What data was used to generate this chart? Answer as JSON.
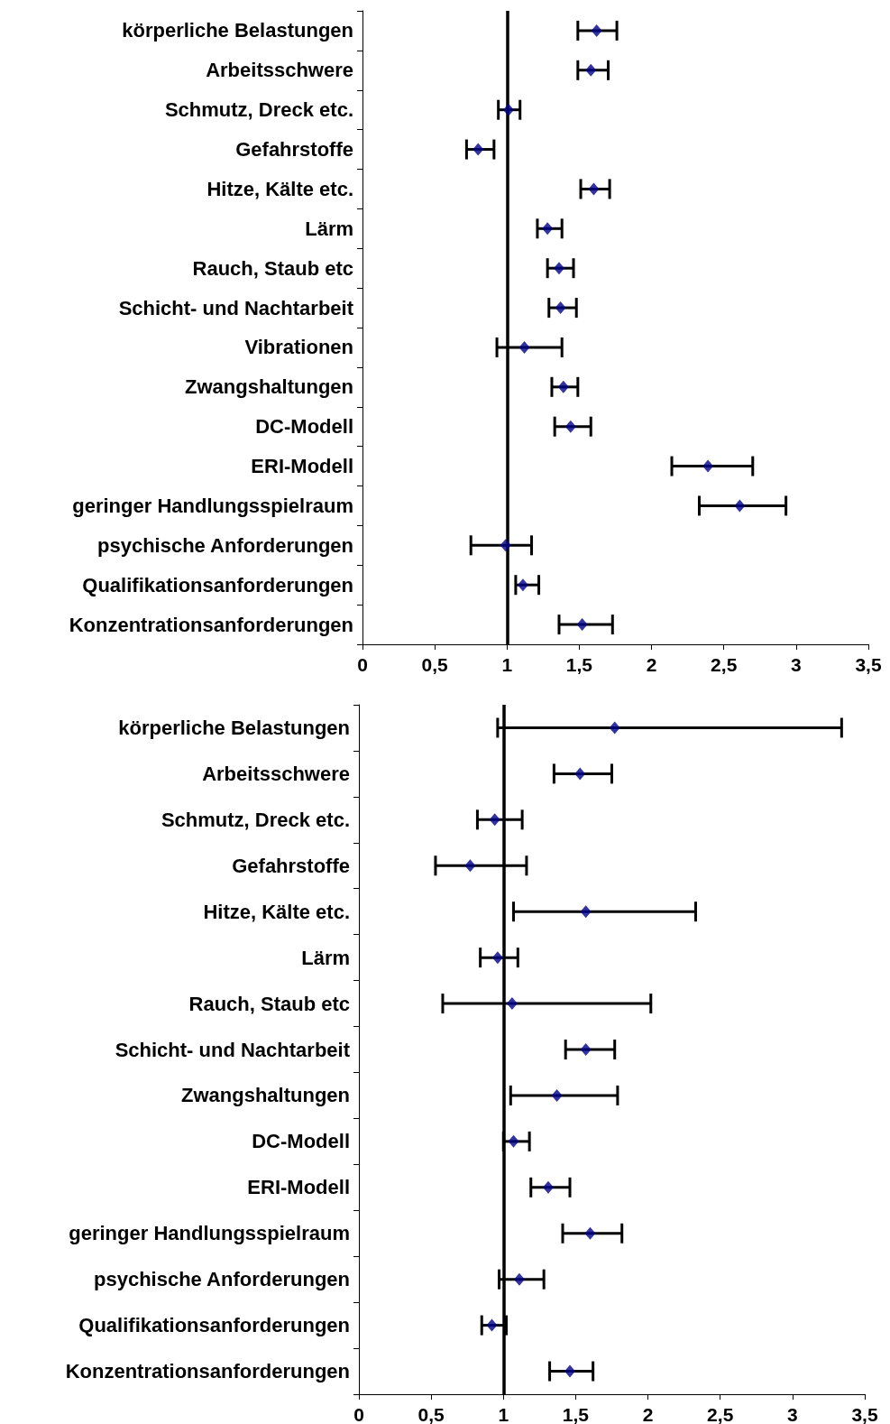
{
  "chart_data": [
    {
      "type": "scatter",
      "orientation": "horizontal",
      "marker": "diamond",
      "color": "#00008b",
      "grid": false,
      "legend": false,
      "categories": [
        "körperliche Belastungen",
        "Arbeitsschwere",
        "Schmutz, Dreck etc.",
        "Gefahrstoffe",
        "Hitze, Kälte etc.",
        "Lärm",
        "Rauch, Staub etc",
        "Schicht- und Nachtarbeit",
        "Vibrationen",
        "Zwangshaltungen",
        "DC-Modell",
        "ERI-Modell",
        "geringer Handlungsspielraum",
        "psychische Anforderungen",
        "Qualifikationsanforderungen",
        "Konzentrationsanforderungen"
      ],
      "values": [
        1.62,
        1.58,
        1.01,
        0.8,
        1.6,
        1.28,
        1.36,
        1.37,
        1.12,
        1.39,
        1.44,
        2.39,
        2.61,
        0.99,
        1.11,
        1.52
      ],
      "errors": [
        [
          1.49,
          1.76
        ],
        [
          1.49,
          1.7
        ],
        [
          0.94,
          1.09
        ],
        [
          0.72,
          0.91
        ],
        [
          1.51,
          1.71
        ],
        [
          1.21,
          1.38
        ],
        [
          1.28,
          1.46
        ],
        [
          1.29,
          1.48
        ],
        [
          0.93,
          1.38
        ],
        [
          1.31,
          1.49
        ],
        [
          1.33,
          1.58
        ],
        [
          2.14,
          2.7
        ],
        [
          2.33,
          2.93
        ],
        [
          0.75,
          1.17
        ],
        [
          1.06,
          1.22
        ],
        [
          1.36,
          1.73
        ]
      ],
      "xlim": [
        0,
        3.5
      ],
      "xticks": [
        0,
        {
          "value": 0.5,
          "label": "0,5"
        },
        1,
        {
          "value": 1.5,
          "label": "1,5"
        },
        2,
        {
          "value": 2.5,
          "label": "2,5"
        },
        3,
        {
          "value": 3.5,
          "label": "3,5"
        }
      ],
      "ref_lines": [
        {
          "axis": "x",
          "value": 1,
          "color": "#000000"
        }
      ]
    },
    {
      "type": "scatter",
      "orientation": "horizontal",
      "marker": "diamond",
      "color": "#00008b",
      "grid": false,
      "legend": false,
      "categories": [
        "körperliche Belastungen",
        "Arbeitsschwere",
        "Schmutz, Dreck etc.",
        "Gefahrstoffe",
        "Hitze, Kälte etc.",
        "Lärm",
        "Rauch, Staub etc",
        "Schicht- und Nachtarbeit",
        "Zwangshaltungen",
        "DC-Modell",
        "ERI-Modell",
        "geringer Handlungsspielraum",
        "psychische Anforderungen",
        "Qualifikationsanforderungen",
        "Konzentrationsanforderungen"
      ],
      "values": [
        1.77,
        1.53,
        0.94,
        0.77,
        1.57,
        0.96,
        1.06,
        1.57,
        1.37,
        1.07,
        1.31,
        1.6,
        1.11,
        0.92,
        1.46
      ],
      "errors": [
        [
          0.96,
          3.34
        ],
        [
          1.35,
          1.75
        ],
        [
          0.82,
          1.13
        ],
        [
          0.53,
          1.16
        ],
        [
          1.07,
          2.33
        ],
        [
          0.84,
          1.1
        ],
        [
          0.58,
          2.02
        ],
        [
          1.43,
          1.77
        ],
        [
          1.05,
          1.79
        ],
        [
          1.0,
          1.18
        ],
        [
          1.19,
          1.46
        ],
        [
          1.41,
          1.82
        ],
        [
          0.97,
          1.28
        ],
        [
          0.85,
          1.02
        ],
        [
          1.32,
          1.62
        ]
      ],
      "xlim": [
        0,
        3.5
      ],
      "xticks": [
        0,
        {
          "value": 0.5,
          "label": "0,5"
        },
        1,
        {
          "value": 1.5,
          "label": "1,5"
        },
        2,
        {
          "value": 2.5,
          "label": "2,5"
        },
        3,
        {
          "value": 3.5,
          "label": "3,5"
        }
      ],
      "ref_lines": [
        {
          "axis": "x",
          "value": 1,
          "color": "#000000"
        }
      ]
    }
  ]
}
